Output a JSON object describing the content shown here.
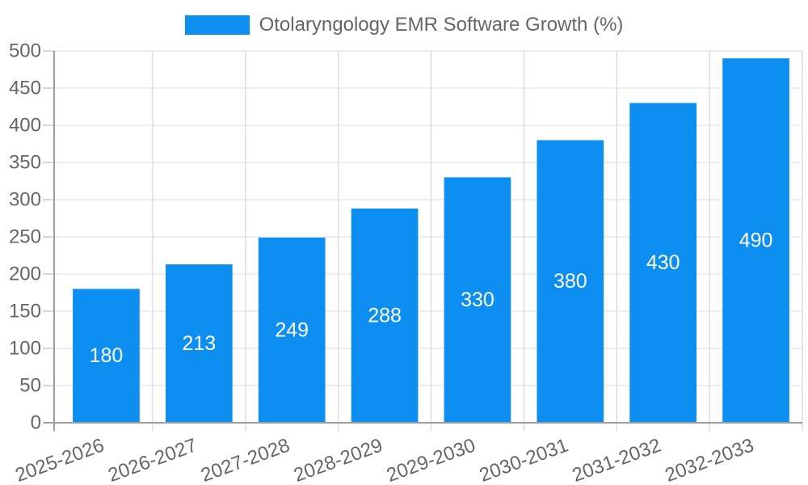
{
  "legend": {
    "label": "Otolaryngology EMR Software Growth (%)",
    "position": "top-center"
  },
  "chart_data": {
    "type": "bar",
    "title": "Otolaryngology EMR Software Growth (%)",
    "categories": [
      "2025-2026",
      "2026-2027",
      "2027-2028",
      "2028-2029",
      "2029-2030",
      "2030-2031",
      "2031-2032",
      "2032-2033"
    ],
    "values": [
      180,
      213,
      249,
      288,
      330,
      380,
      430,
      490
    ],
    "xlabel": "",
    "ylabel": "",
    "ylim": [
      0,
      500
    ],
    "ytick_step": 50,
    "yticks": [
      0,
      50,
      100,
      150,
      200,
      250,
      300,
      350,
      400,
      450,
      500
    ],
    "grid": true,
    "legend_position": "top-center",
    "x_label_rotation_deg": -20,
    "value_label_position": "inside-center",
    "colors": {
      "bar": "#0d8ff2",
      "value_label": "#ffffff",
      "axis_line": "#9e9e9e",
      "grid_horizontal": "#e7e7e7",
      "grid_vertical": "#dadada",
      "tick": "#cbcbcb",
      "axis_text": "#666666",
      "legend_text": "#666666",
      "background": "#ffffff"
    }
  }
}
